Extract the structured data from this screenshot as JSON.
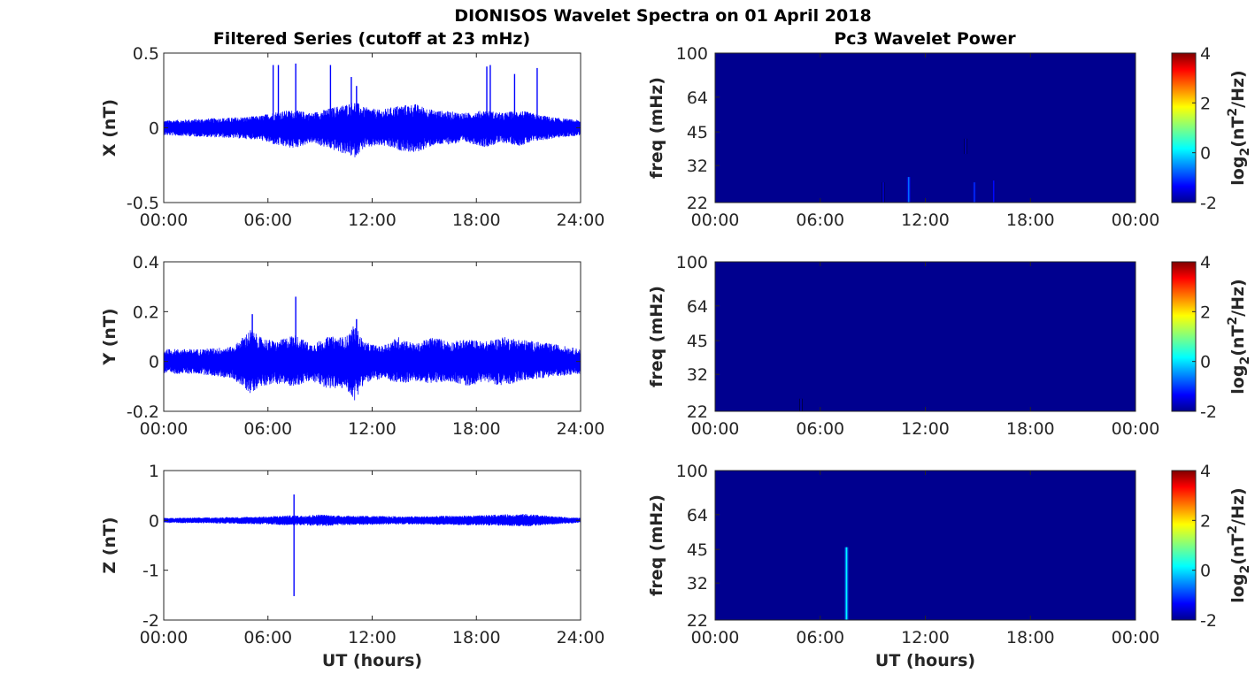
{
  "figure": {
    "title": "DIONISOS Wavelet Spectra on 01 April 2018",
    "left_column_title": "Filtered Series (cutoff at 23 mHz)",
    "right_column_title": "Pc3 Wavelet Power"
  },
  "colors": {
    "trace": "#0000ff",
    "spectrum_background": "#00008f",
    "axis": "#262626"
  },
  "chart_data": [
    {
      "type": "line",
      "component": "X",
      "ylabel": "X (nT)",
      "ylim": [
        -0.5,
        0.5
      ],
      "yticks": [
        -0.5,
        0,
        0.5
      ],
      "ytick_labels": [
        "-0.5",
        "0",
        "0.5"
      ],
      "xlim": [
        0,
        24
      ],
      "xticks": [
        0,
        6,
        12,
        18,
        24
      ],
      "xtick_labels": [
        "00:00",
        "06:00",
        "12:00",
        "18:00",
        "24:00"
      ],
      "xlabel": "",
      "envelope": {
        "x": [
          0,
          2,
          4,
          5.5,
          6.5,
          7.5,
          8.5,
          9.5,
          10.5,
          11,
          11.5,
          12.5,
          13.5,
          14.5,
          15.5,
          16.5,
          17.5,
          18.5,
          19.5,
          20.5,
          21.5,
          22.5,
          24
        ],
        "upper": [
          0.05,
          0.06,
          0.07,
          0.08,
          0.11,
          0.12,
          0.1,
          0.13,
          0.16,
          0.18,
          0.14,
          0.12,
          0.15,
          0.16,
          0.12,
          0.11,
          0.1,
          0.12,
          0.1,
          0.12,
          0.09,
          0.07,
          0.05
        ],
        "lower": [
          -0.05,
          -0.06,
          -0.07,
          -0.08,
          -0.12,
          -0.14,
          -0.1,
          -0.14,
          -0.18,
          -0.2,
          -0.14,
          -0.12,
          -0.15,
          -0.17,
          -0.12,
          -0.11,
          -0.1,
          -0.13,
          -0.1,
          -0.12,
          -0.09,
          -0.07,
          -0.05
        ]
      },
      "spikes": {
        "x": [
          6.3,
          6.6,
          7.6,
          9.6,
          10.8,
          11.1,
          18.6,
          18.8,
          20.2,
          21.5
        ],
        "y": [
          0.42,
          0.42,
          0.43,
          0.42,
          0.34,
          0.28,
          0.41,
          0.42,
          0.36,
          0.4
        ]
      }
    },
    {
      "type": "line",
      "component": "Y",
      "ylabel": "Y (nT)",
      "ylim": [
        -0.2,
        0.4
      ],
      "yticks": [
        -0.2,
        0,
        0.2,
        0.4
      ],
      "ytick_labels": [
        "-0.2",
        "0",
        "0.2",
        "0.4"
      ],
      "xlim": [
        0,
        24
      ],
      "xticks": [
        0,
        6,
        12,
        18,
        24
      ],
      "xtick_labels": [
        "00:00",
        "06:00",
        "12:00",
        "18:00",
        "24:00"
      ],
      "xlabel": "",
      "envelope": {
        "x": [
          0,
          2,
          4,
          5,
          5.5,
          6.5,
          7.5,
          8.5,
          9.5,
          10.5,
          11,
          11.5,
          12.5,
          13.5,
          14.5,
          15.5,
          16.5,
          17.5,
          18.5,
          19.5,
          20.5,
          21.5,
          22.5,
          24
        ],
        "upper": [
          0.05,
          0.05,
          0.06,
          0.13,
          0.1,
          0.08,
          0.11,
          0.07,
          0.1,
          0.1,
          0.15,
          0.08,
          0.06,
          0.1,
          0.07,
          0.1,
          0.08,
          0.09,
          0.08,
          0.1,
          0.09,
          0.08,
          0.07,
          0.05
        ],
        "lower": [
          -0.05,
          -0.05,
          -0.07,
          -0.13,
          -0.1,
          -0.09,
          -0.1,
          -0.08,
          -0.11,
          -0.11,
          -0.16,
          -0.09,
          -0.07,
          -0.09,
          -0.08,
          -0.09,
          -0.08,
          -0.1,
          -0.08,
          -0.1,
          -0.08,
          -0.07,
          -0.06,
          -0.05
        ]
      },
      "spikes": {
        "x": [
          5.1,
          7.6,
          11.1
        ],
        "y": [
          0.19,
          0.26,
          0.17
        ]
      }
    },
    {
      "type": "line",
      "component": "Z",
      "ylabel": "Z (nT)",
      "ylim": [
        -2,
        1
      ],
      "yticks": [
        -2,
        -1,
        0,
        1
      ],
      "ytick_labels": [
        "-2",
        "-1",
        "0",
        "1"
      ],
      "xlim": [
        0,
        24
      ],
      "xticks": [
        0,
        6,
        12,
        18,
        24
      ],
      "xtick_labels": [
        "00:00",
        "06:00",
        "12:00",
        "18:00",
        "24:00"
      ],
      "xlabel": "UT (hours)",
      "envelope": {
        "x": [
          0,
          3,
          6,
          7,
          8,
          9,
          10,
          12,
          14,
          16,
          18,
          19.5,
          21,
          22.5,
          24
        ],
        "upper": [
          0.05,
          0.06,
          0.08,
          0.1,
          0.1,
          0.12,
          0.1,
          0.09,
          0.08,
          0.09,
          0.1,
          0.12,
          0.13,
          0.08,
          0.05
        ],
        "lower": [
          -0.05,
          -0.06,
          -0.08,
          -0.1,
          -0.1,
          -0.12,
          -0.1,
          -0.09,
          -0.08,
          -0.09,
          -0.1,
          -0.11,
          -0.12,
          -0.08,
          -0.05
        ]
      },
      "spikes": {
        "x": [
          7.5,
          7.5
        ],
        "y": [
          0.52,
          -1.52
        ]
      }
    },
    {
      "type": "heatmap",
      "component": "X",
      "ylabel": "freq (mHz)",
      "ylim": [
        22,
        100
      ],
      "y_scale": "log",
      "yticks": [
        22,
        32,
        45,
        64,
        100
      ],
      "ytick_labels": [
        "22",
        "32",
        "45",
        "64",
        "100"
      ],
      "xlim": [
        0,
        24
      ],
      "xticks": [
        0,
        6,
        12,
        18,
        24
      ],
      "xtick_labels": [
        "00:00",
        "06:00",
        "12:00",
        "18:00",
        "00:00"
      ],
      "xlabel": "",
      "colorbar": {
        "label": "log2(nT2/Hz)",
        "clim": [
          -2,
          4
        ],
        "ticks": [
          -2,
          0,
          2,
          4
        ],
        "tick_labels": [
          "-2",
          "0",
          "2",
          "4"
        ],
        "colormap": "jet"
      },
      "background_value": -2,
      "features": [
        {
          "time": 9.6,
          "freq_low": 22,
          "freq_high": 27,
          "value": -1.5
        },
        {
          "time": 11.05,
          "freq_low": 22,
          "freq_high": 28.5,
          "value": -0.6
        },
        {
          "time": 14.3,
          "freq_low": 36,
          "freq_high": 42,
          "value": -1.6
        },
        {
          "time": 14.8,
          "freq_low": 22,
          "freq_high": 27,
          "value": -1.0
        },
        {
          "time": 15.9,
          "freq_low": 22,
          "freq_high": 27.5,
          "value": -1.2
        }
      ]
    },
    {
      "type": "heatmap",
      "component": "Y",
      "ylabel": "freq (mHz)",
      "ylim": [
        22,
        100
      ],
      "y_scale": "log",
      "yticks": [
        22,
        32,
        45,
        64,
        100
      ],
      "ytick_labels": [
        "22",
        "32",
        "45",
        "64",
        "100"
      ],
      "xlim": [
        0,
        24
      ],
      "xticks": [
        0,
        6,
        12,
        18,
        24
      ],
      "xtick_labels": [
        "00:00",
        "06:00",
        "12:00",
        "18:00",
        "00:00"
      ],
      "xlabel": "",
      "colorbar": {
        "label": "log2(nT2/Hz)",
        "clim": [
          -2,
          4
        ],
        "ticks": [
          -2,
          0,
          2,
          4
        ],
        "tick_labels": [
          "-2",
          "0",
          "2",
          "4"
        ],
        "colormap": "jet"
      },
      "background_value": -2,
      "features": [
        {
          "time": 4.9,
          "freq_low": 22,
          "freq_high": 25,
          "value": -1.7
        }
      ]
    },
    {
      "type": "heatmap",
      "component": "Z",
      "ylabel": "freq (mHz)",
      "ylim": [
        22,
        100
      ],
      "y_scale": "log",
      "yticks": [
        22,
        32,
        45,
        64,
        100
      ],
      "ytick_labels": [
        "22",
        "32",
        "45",
        "64",
        "100"
      ],
      "xlim": [
        0,
        24
      ],
      "xticks": [
        0,
        6,
        12,
        18,
        24
      ],
      "xtick_labels": [
        "00:00",
        "06:00",
        "12:00",
        "18:00",
        "00:00"
      ],
      "xlabel": "UT (hours)",
      "colorbar": {
        "label": "log2(nT2/Hz)",
        "clim": [
          -2,
          4
        ],
        "ticks": [
          -2,
          0,
          2,
          4
        ],
        "tick_labels": [
          "-2",
          "0",
          "2",
          "4"
        ],
        "colormap": "jet"
      },
      "background_value": -2,
      "features": [
        {
          "time": 7.5,
          "freq_low": 22,
          "freq_high": 46,
          "value": 0.2
        }
      ]
    }
  ]
}
